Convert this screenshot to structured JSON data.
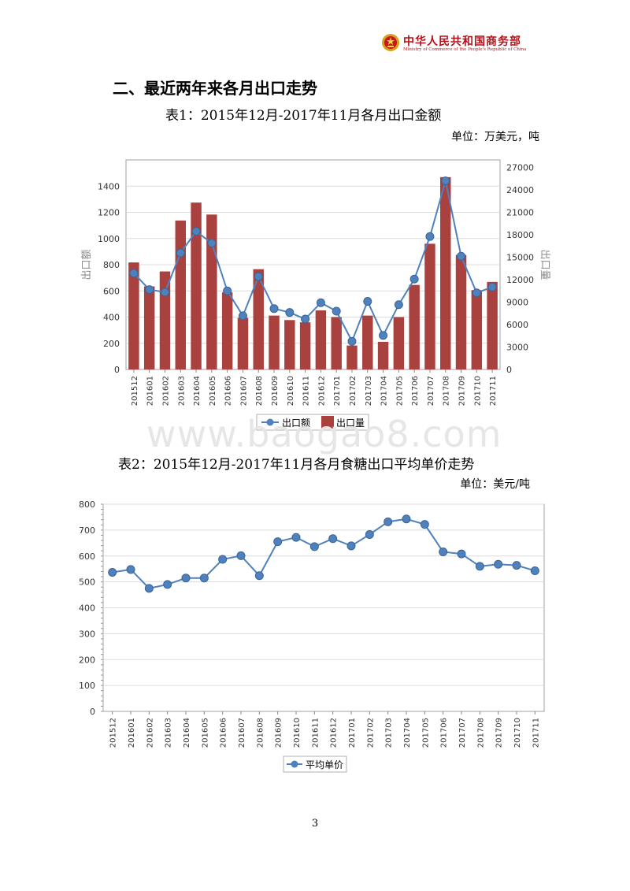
{
  "header": {
    "org_name": "中华人民共和国商务部",
    "org_name_en": "Ministry of Commerce of the People's Republic of China",
    "emblem_icon": "national-emblem-icon"
  },
  "section_heading": "二、最近两年来各月出口走势",
  "watermark": "www.baogao8.com",
  "page_number": "3",
  "chart_data": [
    {
      "type": "bar+line",
      "caption": "表1：2015年12月-2017年11月各月出口金额",
      "unit_note": "单位：万美元，吨",
      "categories": [
        "201512",
        "201601",
        "201602",
        "201603",
        "201604",
        "201605",
        "201606",
        "201607",
        "201608",
        "201609",
        "201610",
        "201611",
        "201612",
        "201701",
        "201702",
        "201703",
        "201704",
        "201705",
        "201706",
        "201707",
        "201708",
        "201709",
        "201710",
        "201711"
      ],
      "series": [
        {
          "name": "出口额",
          "kind": "line",
          "axis": "left",
          "values": [
            735,
            610,
            590,
            890,
            1055,
            965,
            600,
            410,
            710,
            465,
            435,
            385,
            510,
            445,
            215,
            520,
            260,
            495,
            690,
            1015,
            1440,
            865,
            585,
            630
          ]
        },
        {
          "name": "出口量",
          "kind": "bar",
          "axis": "right",
          "values": [
            14300,
            11100,
            13100,
            19900,
            22300,
            20700,
            10300,
            6900,
            13400,
            7200,
            6600,
            6300,
            7900,
            7000,
            3200,
            7200,
            3700,
            7000,
            11300,
            16800,
            25700,
            15300,
            10600,
            11700
          ]
        }
      ],
      "ylabel_left": "出口额",
      "ylabel_right": "出口量",
      "ylim_left": [
        0,
        1600
      ],
      "yticks_left": [
        0,
        200,
        400,
        600,
        800,
        1000,
        1200,
        1400
      ],
      "ylim_right": [
        0,
        28000
      ],
      "yticks_right": [
        0,
        3000,
        6000,
        9000,
        12000,
        15000,
        18000,
        21000,
        24000,
        27000
      ],
      "grid": true,
      "legend": "bottom",
      "colors": {
        "line": "#4f81bd",
        "bar": "#a9413f"
      }
    },
    {
      "type": "line",
      "caption": "表2：2015年12月-2017年11月各月食糖出口平均单价走势",
      "unit_note": "单位：美元/吨",
      "categories": [
        "201512",
        "201601",
        "201602",
        "201603",
        "201604",
        "201605",
        "201606",
        "201607",
        "201608",
        "201609",
        "201610",
        "201611",
        "201612",
        "201701",
        "201702",
        "201703",
        "201704",
        "201705",
        "201706",
        "201707",
        "201708",
        "201709",
        "201710",
        "201711"
      ],
      "series": [
        {
          "name": "平均单价",
          "values": [
            537,
            548,
            475,
            490,
            515,
            515,
            587,
            601,
            524,
            655,
            672,
            636,
            667,
            639,
            683,
            732,
            743,
            722,
            616,
            608,
            560,
            568,
            564,
            543
          ]
        }
      ],
      "ylim": [
        0,
        800
      ],
      "yticks": [
        0,
        100,
        200,
        300,
        400,
        500,
        600,
        700,
        800
      ],
      "grid": true,
      "legend": "bottom",
      "colors": {
        "line": "#4f81bd"
      }
    }
  ]
}
